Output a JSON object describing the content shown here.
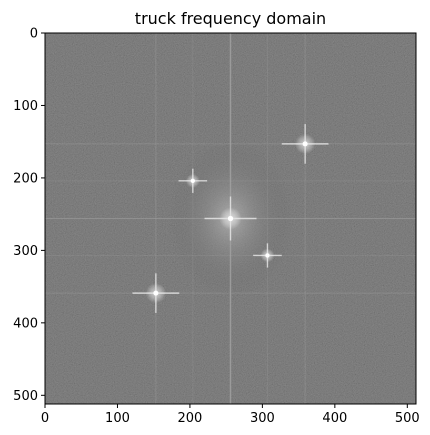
{
  "chart_data": {
    "type": "heatmap",
    "title": "truck frequency domain",
    "xlabel": "",
    "ylabel": "",
    "xlim": [
      0,
      512
    ],
    "ylim": [
      512,
      0
    ],
    "x_ticks": [
      0,
      100,
      200,
      300,
      400,
      500
    ],
    "y_ticks": [
      0,
      100,
      200,
      300,
      400,
      500
    ],
    "x_tick_labels": [
      "0",
      "100",
      "200",
      "300",
      "400",
      "500"
    ],
    "y_tick_labels": [
      "0",
      "100",
      "200",
      "300",
      "400",
      "500"
    ],
    "grid": false,
    "colormap": "gray",
    "background_level": "#5a5a5a",
    "center": {
      "x": 256,
      "y": 256
    },
    "cross_lines": [
      {
        "orientation": "vertical",
        "x": 256
      },
      {
        "orientation": "horizontal",
        "y": 256
      }
    ],
    "peaks": [
      {
        "x": 256,
        "y": 256,
        "intensity": 1.0
      },
      {
        "x": 359,
        "y": 153,
        "intensity": 0.9
      },
      {
        "x": 153,
        "y": 359,
        "intensity": 0.9
      },
      {
        "x": 204,
        "y": 204,
        "intensity": 0.55
      },
      {
        "x": 307,
        "y": 307,
        "intensity": 0.55
      }
    ]
  }
}
